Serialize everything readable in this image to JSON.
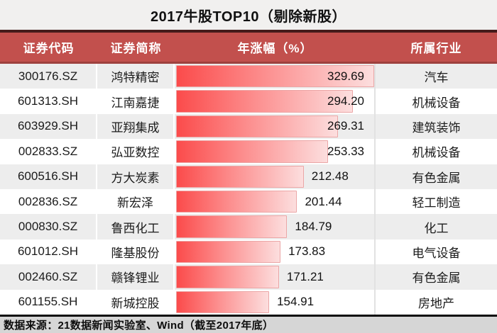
{
  "title": "2017牛股TOP10（剔除新股）",
  "columns": [
    "证券代码",
    "证券简称",
    "年涨幅（%）",
    "所属行业"
  ],
  "footer": "数据来源：21数据新闻实验室、Wind（截至2017年底）",
  "colors": {
    "header_red": "#c2504d",
    "divider_dark_maroon": "#441b1a",
    "divider_red": "#9e413e",
    "row_alt_gray": "#ededed",
    "bar_red": "#fb4b4b",
    "bar_pink": "#fcdede",
    "footer_gray": "#d6d6d6",
    "title_bg": "#f1f0ef"
  },
  "rows": [
    {
      "code": "300176.SZ",
      "name": "鸿特精密",
      "value_label": "329.69",
      "industry": "汽车"
    },
    {
      "code": "601313.SH",
      "name": "江南嘉捷",
      "value_label": "294.20",
      "industry": "机械设备"
    },
    {
      "code": "603929.SH",
      "name": "亚翔集成",
      "value_label": "269.31",
      "industry": "建筑装饰"
    },
    {
      "code": "002833.SZ",
      "name": "弘亚数控",
      "value_label": "253.33",
      "industry": "机械设备"
    },
    {
      "code": "600516.SH",
      "name": "方大炭素",
      "value_label": "212.48",
      "industry": "有色金属"
    },
    {
      "code": "002836.SZ",
      "name": "新宏泽",
      "value_label": "201.44",
      "industry": "轻工制造"
    },
    {
      "code": "000830.SZ",
      "name": "鲁西化工",
      "value_label": "184.79",
      "industry": "化工"
    },
    {
      "code": "601012.SH",
      "name": "隆基股份",
      "value_label": "173.83",
      "industry": "电气设备"
    },
    {
      "code": "002460.SZ",
      "name": "赣锋锂业",
      "value_label": "171.21",
      "industry": "有色金属"
    },
    {
      "code": "601155.SH",
      "name": "新城控股",
      "value_label": "154.91",
      "industry": "房地产"
    }
  ],
  "chart_data": {
    "type": "bar",
    "orientation": "horizontal",
    "title": "2017牛股TOP10（剔除新股）",
    "categories": [
      "鸿特精密",
      "江南嘉捷",
      "亚翔集成",
      "弘亚数控",
      "方大炭素",
      "新宏泽",
      "鲁西化工",
      "隆基股份",
      "赣锋锂业",
      "新城控股"
    ],
    "values": [
      329.69,
      294.2,
      269.31,
      253.33,
      212.48,
      201.44,
      184.79,
      173.83,
      171.21,
      154.91
    ],
    "xlabel": "年涨幅（%）",
    "xlim": [
      0,
      330
    ],
    "grid": false,
    "legend": false,
    "data_labels": "outside-end-clamped",
    "source_note": "数据来源：21数据新闻实验室、Wind（截至2017年底）"
  }
}
